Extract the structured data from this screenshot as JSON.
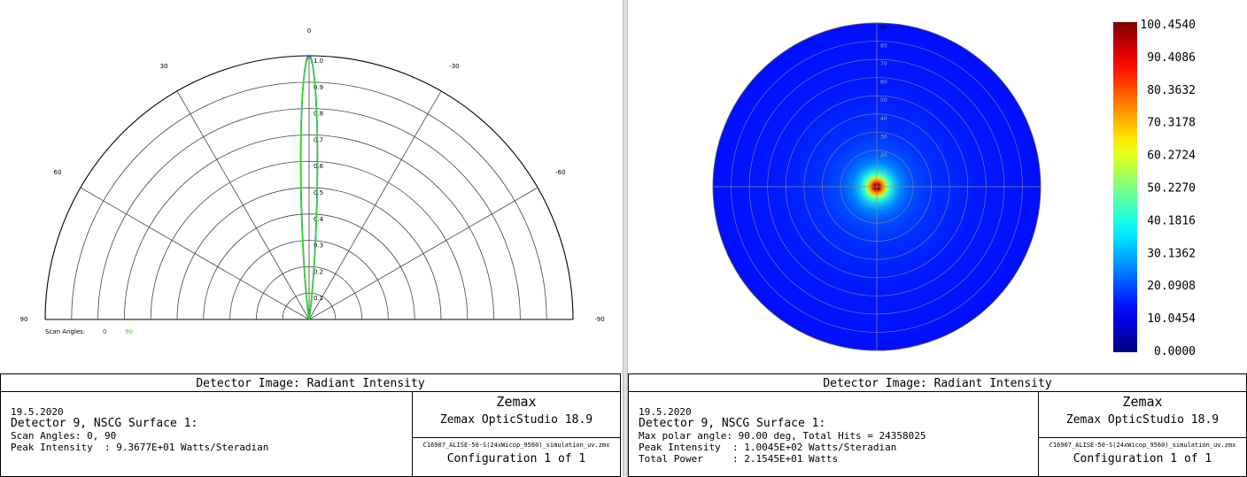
{
  "chart_data": [
    {
      "type": "line",
      "plot_style": "polar-semicircle",
      "angle_labels": [
        "0",
        "30",
        "-30",
        "60",
        "-60",
        "90",
        "-90"
      ],
      "radial_labels": [
        "1.0",
        "0.9",
        "0.8",
        "0.7",
        "0.6",
        "0.5",
        "0.4",
        "0.3",
        "0.2",
        "0.1"
      ],
      "rlim": [
        0,
        1
      ],
      "thetalim": [
        -90,
        90
      ],
      "legend": {
        "label": "Scan Angles:",
        "placement": "bottom-left"
      },
      "series": [
        {
          "name": "0",
          "color": "#1f2bd9",
          "fwhm_deg": 7,
          "peak": 1.0
        },
        {
          "name": "90",
          "color": "#2bdc2b",
          "fwhm_deg": 7.2,
          "peak": 0.995
        }
      ],
      "grid": true
    },
    {
      "type": "heatmap",
      "plot_style": "polar-disc",
      "ring_labels": [
        "90",
        "80",
        "70",
        "60",
        "50",
        "40",
        "30",
        "20",
        "10"
      ],
      "max_polar_angle": 90,
      "peak_value": 100.454,
      "colorbar": {
        "min": 0.0,
        "max": 100.454,
        "tick_labels": [
          "100.4540",
          "90.4086",
          "80.3632",
          "70.3178",
          "60.2724",
          "50.2270",
          "40.1816",
          "30.1362",
          "20.0908",
          "10.0454",
          "0.0000"
        ],
        "colormap": "jet"
      },
      "grid": true
    }
  ],
  "left_info": {
    "title": "Detector Image: Radiant Intensity",
    "date": "19.5.2020",
    "detector": "Detector 9, NSCG Surface 1:",
    "line3": "Scan Angles: 0, 90",
    "line4": "Peak Intensity  : 9.3677E+01 Watts/Steradian",
    "brand": "Zemax",
    "product": "Zemax OpticStudio 18.9",
    "file": "C16907_ALISE-50-S(24xWicop_9560)_simulation_uv.zmx",
    "config": "Configuration 1 of 1"
  },
  "right_info": {
    "title": "Detector Image: Radiant Intensity",
    "date": "19.5.2020",
    "detector": "Detector 9, NSCG Surface 1:",
    "line3": "Max polar angle: 90.00 deg, Total Hits = 24358025",
    "line4": "Peak Intensity  : 1.0045E+02 Watts/Steradian",
    "line5": "Total Power     : 2.1545E+01 Watts",
    "brand": "Zemax",
    "product": "Zemax OpticStudio 18.9",
    "file": "C16907_ALISE-50-S(24xWicop_9560)_simulation_uv.zmx",
    "config": "Configuration 1 of 1"
  }
}
